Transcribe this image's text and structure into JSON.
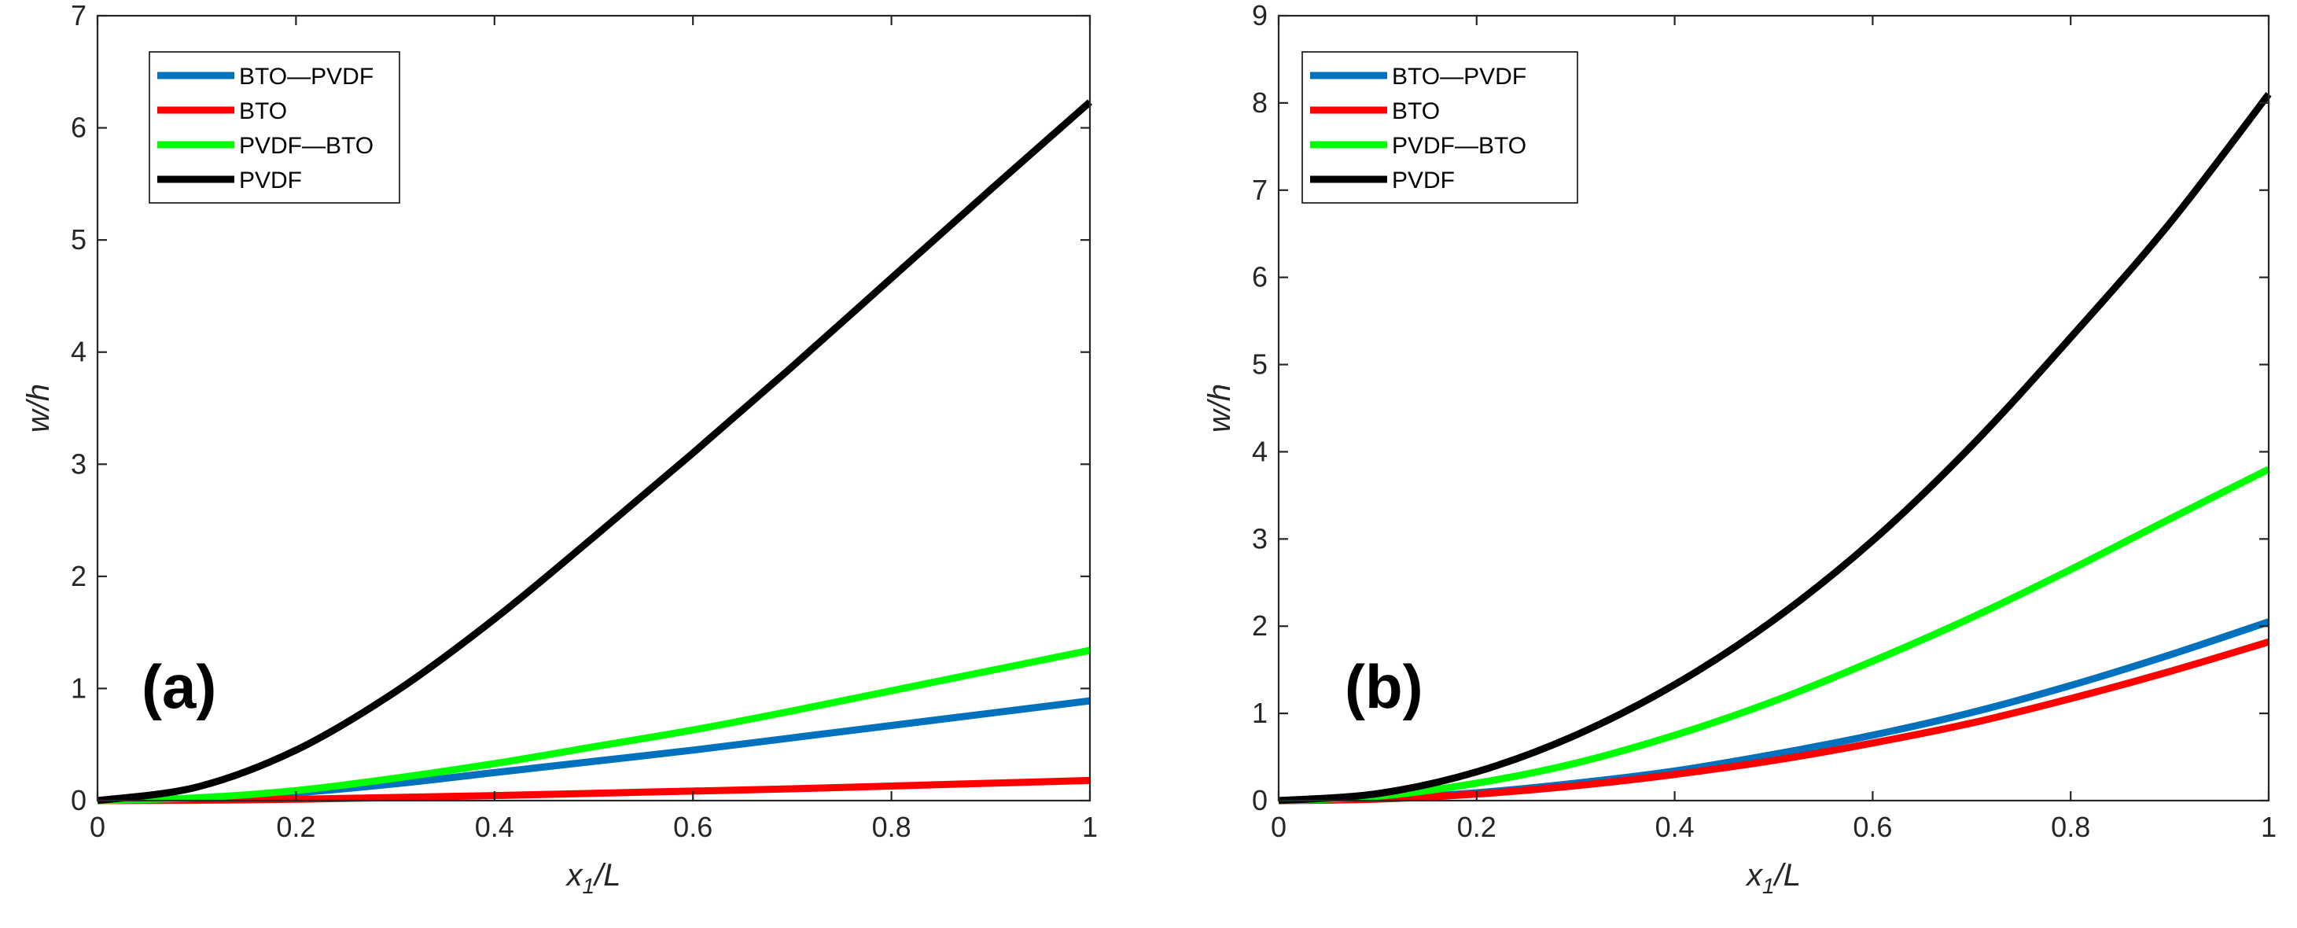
{
  "chart_data": [
    {
      "type": "line",
      "panel_label": "(a)",
      "xlabel": {
        "main": "x",
        "sub": "1",
        "rest": "/L"
      },
      "ylabel": "w/h",
      "xlim": [
        0,
        1
      ],
      "ylim": [
        0,
        7
      ],
      "xticks": [
        0,
        0.2,
        0.4,
        0.6,
        0.8,
        1
      ],
      "xtick_labels": [
        "0",
        "0.2",
        "0.4",
        "0.6",
        "0.8",
        "1"
      ],
      "yticks": [
        0,
        1,
        2,
        3,
        4,
        5,
        6,
        7
      ],
      "ytick_labels": [
        "0",
        "1",
        "2",
        "3",
        "4",
        "5",
        "6",
        "7"
      ],
      "legend_position": "top-left",
      "x": [
        0,
        0.1,
        0.2,
        0.3,
        0.4,
        0.5,
        0.6,
        0.7,
        0.8,
        0.9,
        1.0
      ],
      "series": [
        {
          "name": "BTO—PVDF",
          "color": "#0072BD",
          "values": [
            0,
            0.02,
            0.07,
            0.15,
            0.25,
            0.35,
            0.45,
            0.56,
            0.67,
            0.78,
            0.89
          ]
        },
        {
          "name": "BTO",
          "color": "#FF0000",
          "values": [
            0,
            0.003,
            0.012,
            0.028,
            0.045,
            0.065,
            0.085,
            0.105,
            0.13,
            0.155,
            0.18
          ]
        },
        {
          "name": "PVDF—BTO",
          "color": "#00FF00",
          "values": [
            0,
            0.025,
            0.09,
            0.2,
            0.33,
            0.48,
            0.63,
            0.8,
            0.98,
            1.16,
            1.34
          ]
        },
        {
          "name": "PVDF",
          "color": "#000000",
          "values": [
            0,
            0.12,
            0.45,
            0.97,
            1.62,
            2.35,
            3.1,
            3.87,
            4.66,
            5.45,
            6.23
          ]
        }
      ]
    },
    {
      "type": "line",
      "panel_label": "(b)",
      "xlabel": {
        "main": "x",
        "sub": "1",
        "rest": "/L"
      },
      "ylabel": "w/h",
      "xlim": [
        0,
        1
      ],
      "ylim": [
        0,
        9
      ],
      "xticks": [
        0,
        0.2,
        0.4,
        0.6,
        0.8,
        1
      ],
      "xtick_labels": [
        "0",
        "0.2",
        "0.4",
        "0.6",
        "0.8",
        "1"
      ],
      "yticks": [
        0,
        1,
        2,
        3,
        4,
        5,
        6,
        7,
        8,
        9
      ],
      "ytick_labels": [
        "0",
        "1",
        "2",
        "3",
        "4",
        "5",
        "6",
        "7",
        "8",
        "9"
      ],
      "legend_position": "top-left",
      "x": [
        0,
        0.1,
        0.2,
        0.3,
        0.4,
        0.5,
        0.6,
        0.7,
        0.8,
        0.9,
        1.0
      ],
      "series": [
        {
          "name": "BTO—PVDF",
          "color": "#0072BD",
          "values": [
            0,
            0.02,
            0.09,
            0.2,
            0.34,
            0.53,
            0.75,
            1.01,
            1.32,
            1.67,
            2.05
          ]
        },
        {
          "name": "BTO",
          "color": "#FF0000",
          "values": [
            0,
            0.017,
            0.075,
            0.17,
            0.3,
            0.46,
            0.66,
            0.89,
            1.17,
            1.48,
            1.82
          ]
        },
        {
          "name": "PVDF—BTO",
          "color": "#00FF00",
          "values": [
            0,
            0.05,
            0.2,
            0.43,
            0.75,
            1.14,
            1.6,
            2.1,
            2.65,
            3.23,
            3.8
          ]
        },
        {
          "name": "PVDF",
          "color": "#000000",
          "values": [
            0,
            0.08,
            0.33,
            0.75,
            1.33,
            2.07,
            2.98,
            4.07,
            5.31,
            6.62,
            8.1
          ]
        }
      ]
    }
  ]
}
